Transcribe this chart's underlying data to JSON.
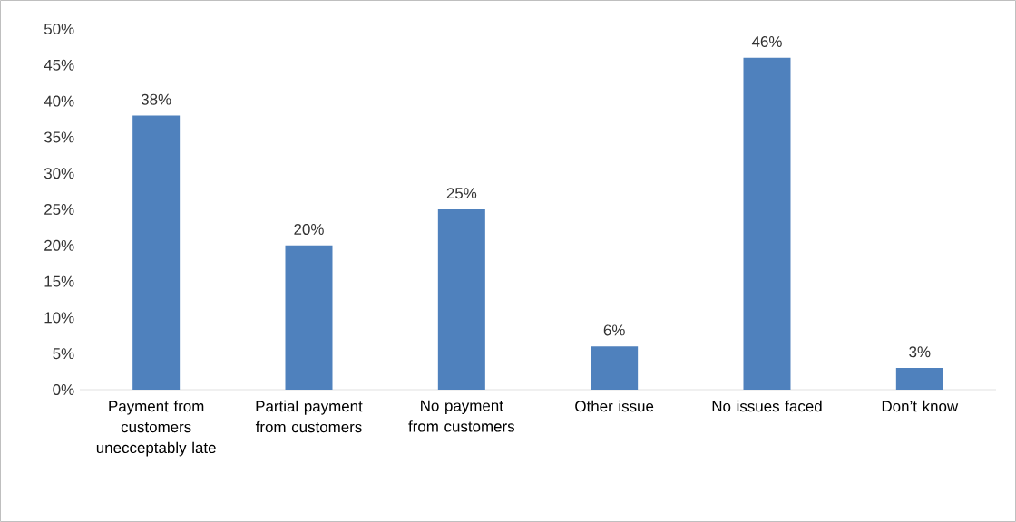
{
  "chart_data": {
    "type": "bar",
    "categories": [
      "Payment from customers unecceptably late",
      "Partial payment from customers",
      "No payment from customers",
      "Other issue",
      "No issues faced",
      "Don’t know"
    ],
    "values": [
      38,
      20,
      25,
      6,
      46,
      3
    ],
    "value_labels": [
      "38%",
      "20%",
      "25%",
      "6%",
      "46%",
      "3%"
    ],
    "color": "#4f81bd",
    "ylim": [
      0,
      50
    ],
    "yticks": [
      {
        "value": 0,
        "label": "0%"
      },
      {
        "value": 5,
        "label": "5%"
      },
      {
        "value": 10,
        "label": "10%"
      },
      {
        "value": 15,
        "label": "15%"
      },
      {
        "value": 20,
        "label": "20%"
      },
      {
        "value": 25,
        "label": "25%"
      },
      {
        "value": 30,
        "label": "30%"
      },
      {
        "value": 35,
        "label": "35%"
      },
      {
        "value": 40,
        "label": "40%"
      },
      {
        "value": 45,
        "label": "45%"
      },
      {
        "value": 50,
        "label": "50%"
      }
    ]
  }
}
